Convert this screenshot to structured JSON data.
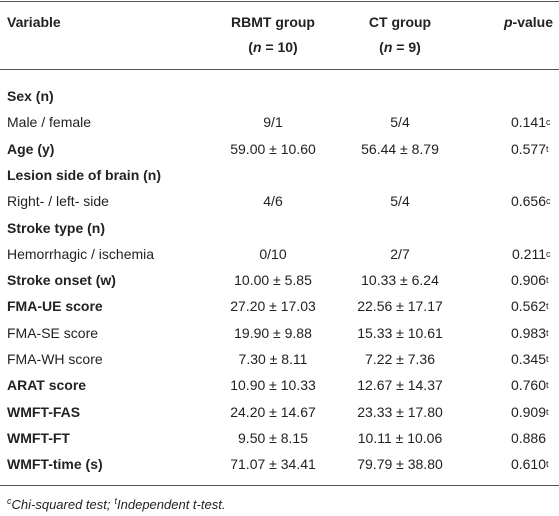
{
  "header": {
    "variable": "Variable",
    "groups": [
      {
        "name": "RBMT group",
        "n": {
          "open": "(",
          "symbol": "n",
          "rest": " = 10)"
        }
      },
      {
        "name": "CT group",
        "n": {
          "open": "(",
          "symbol": "n",
          "rest": " = 9)"
        }
      }
    ],
    "p_label": {
      "italic": "p",
      "rest": "-value"
    }
  },
  "rows": [
    {
      "label": "Sex (n)",
      "bold": true
    },
    {
      "label": "Male / female",
      "rbmt": "9/1",
      "ct": "5/4",
      "p": {
        "value": "0.141",
        "note": "c"
      }
    },
    {
      "label": "Age (y)",
      "bold": true,
      "rbmt": "59.00 ± 10.60",
      "ct": "56.44 ± 8.79",
      "p": {
        "value": "0.577",
        "note": "t"
      }
    },
    {
      "label": "Lesion side of brain (n)",
      "bold": true
    },
    {
      "label": "Right- / left- side",
      "rbmt": "4/6",
      "ct": "5/4",
      "p": {
        "value": "0.656",
        "note": "c"
      }
    },
    {
      "label": "Stroke type (n)",
      "bold": true
    },
    {
      "label": "Hemorrhagic / ischemia",
      "rbmt": "0/10",
      "ct": "2/7",
      "p": {
        "value": "0.211",
        "note": "c"
      }
    },
    {
      "label": "Stroke onset (w)",
      "bold": true,
      "rbmt": "10.00 ± 5.85",
      "ct": "10.33 ± 6.24",
      "p": {
        "value": "0.906",
        "note": "t"
      }
    },
    {
      "label": "FMA-UE score",
      "bold": true,
      "rbmt": "27.20 ± 17.03",
      "ct": "22.56 ± 17.17",
      "p": {
        "value": "0.562",
        "note": "t"
      }
    },
    {
      "label": "FMA-SE score",
      "rbmt": "19.90 ± 9.88",
      "ct": "15.33 ± 10.61",
      "p": {
        "value": "0.983",
        "note": "t"
      }
    },
    {
      "label": "FMA-WH score",
      "rbmt": "7.30 ± 8.11",
      "ct": "7.22 ± 7.36",
      "p": {
        "value": "0.345",
        "note": "t"
      }
    },
    {
      "label": "ARAT score",
      "bold": true,
      "rbmt": "10.90 ± 10.33",
      "ct": "12.67 ± 14.37",
      "p": {
        "value": "0.760",
        "note": "t"
      }
    },
    {
      "label": "WMFT-FAS",
      "bold": true,
      "rbmt": "24.20 ± 14.67",
      "ct": "23.33 ± 17.80",
      "p": {
        "value": "0.909",
        "note": "t"
      }
    },
    {
      "label": "WMFT-FT",
      "bold": true,
      "rbmt": "9.50 ± 8.15",
      "ct": "10.11 ± 10.06",
      "p": {
        "value": "0.886"
      }
    },
    {
      "label": "WMFT-time (s)",
      "bold": true,
      "rbmt": "71.07 ± 34.41",
      "ct": "79.79 ± 38.80",
      "p": {
        "value": "0.610",
        "note": "t"
      }
    }
  ],
  "footnote": [
    {
      "sup": "c",
      "text": "Chi-squared test;"
    },
    {
      "sup": "t",
      "text": "Independent t-test."
    }
  ]
}
